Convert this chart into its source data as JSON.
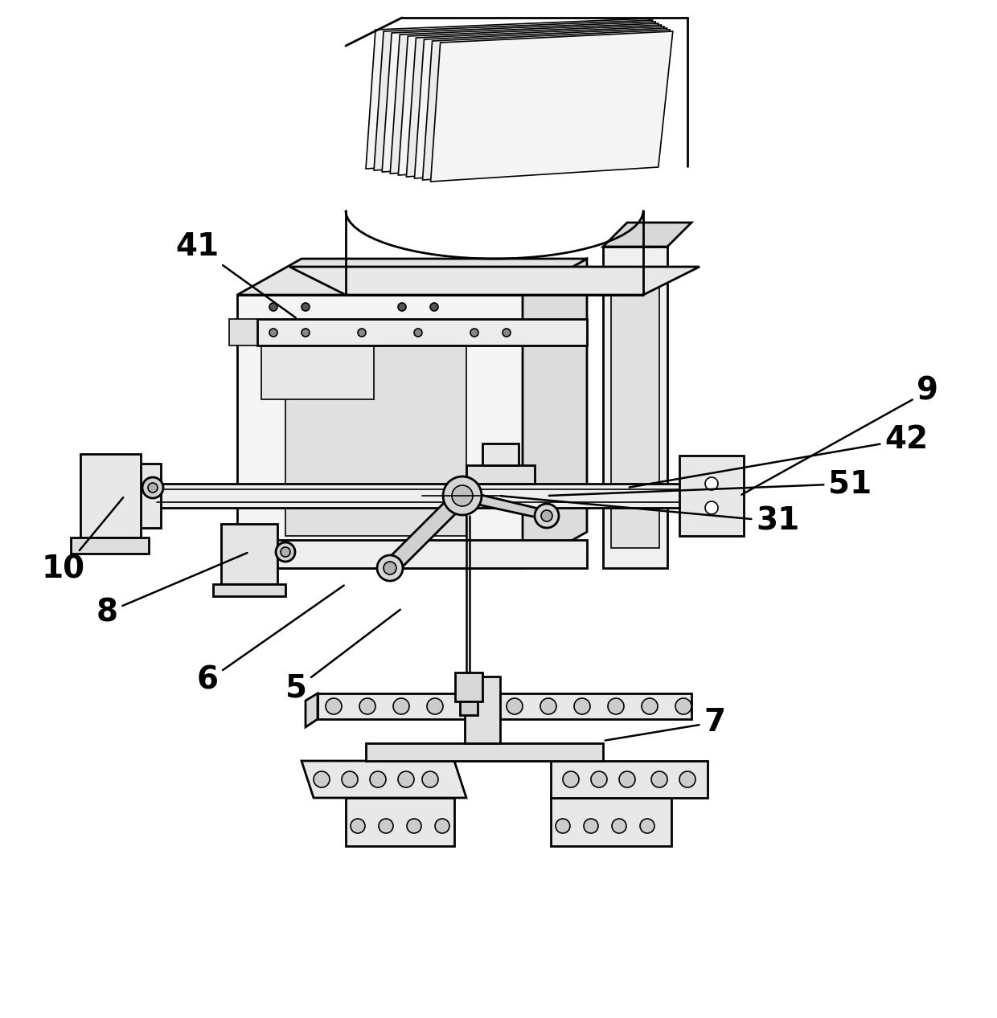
{
  "bg_color": "#ffffff",
  "line_color": "#000000",
  "label_fontsize": 28,
  "figsize": [
    12.4,
    12.67
  ],
  "dpi": 100
}
